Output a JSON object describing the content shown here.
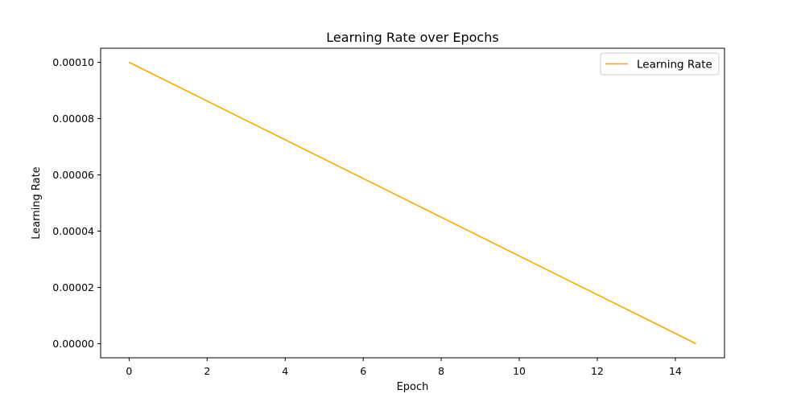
{
  "chart_data": {
    "type": "line",
    "title": "Learning Rate over Epochs",
    "xlabel": "Epoch",
    "ylabel": "Learning Rate",
    "xlim": [
      -0.73,
      15.26
    ],
    "ylim": [
      -5e-06,
      0.000105
    ],
    "xticks": [
      0,
      2,
      4,
      6,
      8,
      10,
      12,
      14
    ],
    "xtick_labels": [
      "0",
      "2",
      "4",
      "6",
      "8",
      "10",
      "12",
      "14"
    ],
    "yticks": [
      0,
      2e-05,
      4e-05,
      6e-05,
      8e-05,
      0.0001
    ],
    "ytick_labels": [
      "0.00000",
      "0.00002",
      "0.00004",
      "0.00006",
      "0.00008",
      "0.00010"
    ],
    "grid": false,
    "legend_position": "top-right",
    "series": [
      {
        "name": "Learning Rate",
        "color": "#FFA500",
        "x": [
          0,
          14.53
        ],
        "y": [
          0.0001,
          0.0
        ]
      }
    ]
  }
}
